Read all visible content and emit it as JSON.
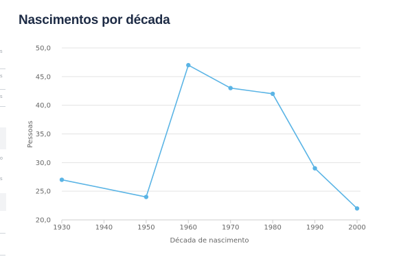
{
  "page": {
    "title": "Nascimentos por década"
  },
  "colors": {
    "series": "#5ab4e5",
    "grid": "#e3e3e3",
    "axis": "#cccccc",
    "title": "#1d2b45"
  },
  "chart_data": {
    "type": "line",
    "xlabel": "Década de nascimento",
    "ylabel": "Pessoas",
    "x_ticks": [
      "1930",
      "1940",
      "1950",
      "1960",
      "1970",
      "1980",
      "1990",
      "2000"
    ],
    "y_ticks": [
      "20,0",
      "25,0",
      "30,0",
      "35,0",
      "40,0",
      "45,0",
      "50,0"
    ],
    "xlim": [
      1930,
      2000
    ],
    "ylim": [
      20,
      50
    ],
    "grid": true,
    "series": [
      {
        "x": [
          1930,
          1950,
          1960,
          1970,
          1980,
          1990,
          2000
        ],
        "values": [
          27,
          24,
          47,
          43,
          42,
          29,
          22
        ]
      }
    ]
  }
}
